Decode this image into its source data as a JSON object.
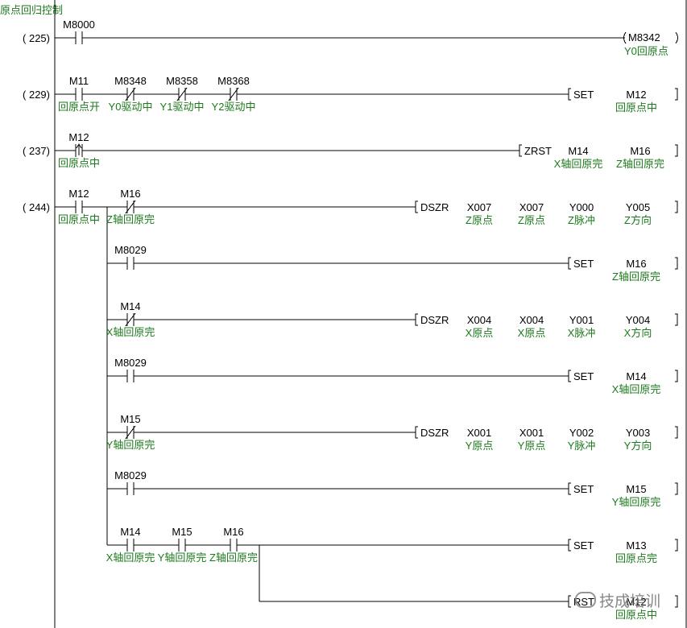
{
  "title": "原点回归控制",
  "watermark": "技成培训",
  "colors": {
    "wire": "#000000",
    "comment": "#1c7a1c",
    "background": "#ffffff"
  },
  "rungs": [
    {
      "step": "( 225)",
      "contacts": [
        {
          "device": "M8000",
          "type": "no",
          "comment": ""
        }
      ],
      "output": {
        "type": "coil",
        "device": "M8342",
        "comment": "Y0回原点"
      }
    },
    {
      "step": "( 229)",
      "contacts": [
        {
          "device": "M11",
          "type": "no",
          "comment": "回原点开"
        },
        {
          "device": "M8348",
          "type": "nc",
          "comment": "Y0驱动中"
        },
        {
          "device": "M8358",
          "type": "nc",
          "comment": "Y1驱动中"
        },
        {
          "device": "M8368",
          "type": "nc",
          "comment": "Y2驱动中"
        }
      ],
      "output": {
        "type": "inst",
        "op": "SET",
        "operands": [
          {
            "device": "M12",
            "comment": "回原点中"
          }
        ]
      }
    },
    {
      "step": "( 237)",
      "contacts": [
        {
          "device": "M12",
          "type": "pulse",
          "comment": "回原点中"
        }
      ],
      "output": {
        "type": "inst",
        "op": "ZRST",
        "operands": [
          {
            "device": "M14",
            "comment": "X轴回原完"
          },
          {
            "device": "M16",
            "comment": "Z轴回原完"
          }
        ]
      }
    },
    {
      "step": "( 244)",
      "contacts": [
        {
          "device": "M12",
          "type": "no",
          "comment": "回原点中"
        }
      ],
      "branches": [
        {
          "contacts": [
            {
              "device": "M16",
              "type": "nc",
              "comment": "Z轴回原完"
            }
          ],
          "output": {
            "type": "inst",
            "op": "DSZR",
            "operands": [
              {
                "device": "X007",
                "comment": "Z原点"
              },
              {
                "device": "X007",
                "comment": "Z原点"
              },
              {
                "device": "Y000",
                "comment": "Z脉冲"
              },
              {
                "device": "Y005",
                "comment": "Z方向"
              }
            ]
          }
        },
        {
          "contacts": [
            {
              "device": "M8029",
              "type": "no",
              "comment": ""
            }
          ],
          "output": {
            "type": "inst",
            "op": "SET",
            "operands": [
              {
                "device": "M16",
                "comment": "Z轴回原完"
              }
            ]
          }
        },
        {
          "contacts": [
            {
              "device": "M14",
              "type": "nc",
              "comment": "X轴回原完"
            }
          ],
          "output": {
            "type": "inst",
            "op": "DSZR",
            "operands": [
              {
                "device": "X004",
                "comment": "X原点"
              },
              {
                "device": "X004",
                "comment": "X原点"
              },
              {
                "device": "Y001",
                "comment": "X脉冲"
              },
              {
                "device": "Y004",
                "comment": "X方向"
              }
            ]
          }
        },
        {
          "contacts": [
            {
              "device": "M8029",
              "type": "no",
              "comment": ""
            }
          ],
          "output": {
            "type": "inst",
            "op": "SET",
            "operands": [
              {
                "device": "M14",
                "comment": "X轴回原完"
              }
            ]
          }
        },
        {
          "contacts": [
            {
              "device": "M15",
              "type": "nc",
              "comment": "Y轴回原完"
            }
          ],
          "output": {
            "type": "inst",
            "op": "DSZR",
            "operands": [
              {
                "device": "X001",
                "comment": "Y原点"
              },
              {
                "device": "X001",
                "comment": "Y原点"
              },
              {
                "device": "Y002",
                "comment": "Y脉冲"
              },
              {
                "device": "Y003",
                "comment": "Y方向"
              }
            ]
          }
        },
        {
          "contacts": [
            {
              "device": "M8029",
              "type": "no",
              "comment": ""
            }
          ],
          "output": {
            "type": "inst",
            "op": "SET",
            "operands": [
              {
                "device": "M15",
                "comment": "Y轴回原完"
              }
            ]
          }
        },
        {
          "contacts": [
            {
              "device": "M14",
              "type": "no",
              "comment": "X轴回原完"
            },
            {
              "device": "M15",
              "type": "no",
              "comment": "Y轴回原完"
            },
            {
              "device": "M16",
              "type": "no",
              "comment": "Z轴回原完"
            }
          ],
          "output": {
            "type": "inst",
            "op": "SET",
            "operands": [
              {
                "device": "M13",
                "comment": "回原点完"
              }
            ]
          },
          "sub_outputs": [
            {
              "type": "inst",
              "op": "RST",
              "operands": [
                {
                  "device": "M12",
                  "comment": "回原点中"
                }
              ]
            }
          ]
        }
      ]
    }
  ]
}
